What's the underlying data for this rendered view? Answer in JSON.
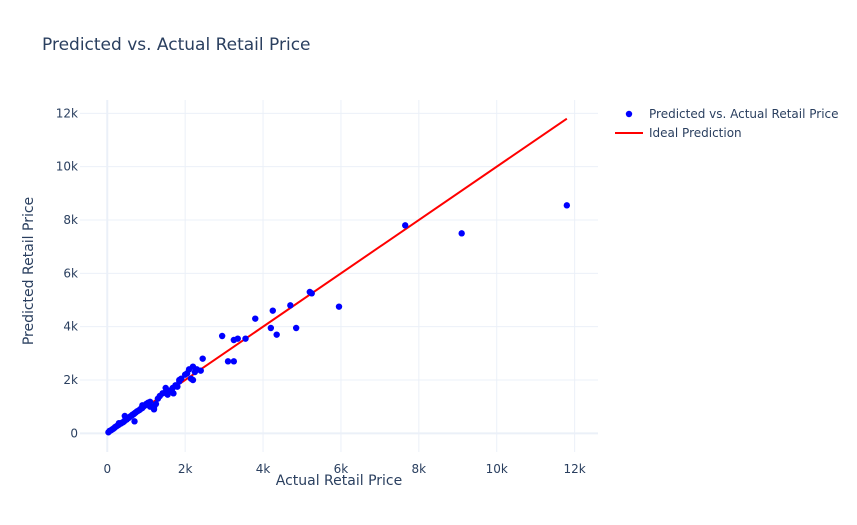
{
  "chart_data": {
    "type": "scatter",
    "title": "Predicted vs. Actual Retail Price",
    "xlabel": "Actual Retail Price",
    "ylabel": "Predicted Retail Price",
    "xlim": [
      -700,
      12600
    ],
    "ylim": [
      -700,
      12500
    ],
    "x_ticks": [
      0,
      2000,
      4000,
      6000,
      8000,
      10000,
      12000
    ],
    "x_tick_labels": [
      "0",
      "2k",
      "4k",
      "6k",
      "8k",
      "10k",
      "12k"
    ],
    "y_ticks": [
      0,
      2000,
      4000,
      6000,
      8000,
      10000,
      12000
    ],
    "y_tick_labels": [
      "0",
      "2k",
      "4k",
      "6k",
      "8k",
      "10k",
      "12k"
    ],
    "grid": true,
    "legend_position": "top-right",
    "series": [
      {
        "name": "Predicted vs. Actual Retail Price",
        "type": "scatter",
        "color": "#0000ff",
        "x": [
          30,
          60,
          90,
          120,
          150,
          180,
          200,
          230,
          260,
          290,
          320,
          350,
          380,
          410,
          440,
          470,
          500,
          520,
          550,
          580,
          610,
          640,
          680,
          700,
          730,
          760,
          800,
          830,
          860,
          900,
          930,
          970,
          1000,
          1050,
          1100,
          1150,
          1200,
          1250,
          1300,
          1350,
          1420,
          1500,
          1550,
          1600,
          1680,
          1750,
          1800,
          1850,
          1900,
          2000,
          2050,
          2100,
          2150,
          2200,
          2250,
          2300,
          2400,
          2450,
          300,
          450,
          650,
          700,
          900,
          1100,
          1200,
          1500,
          1700,
          1850,
          2200,
          2950,
          3100,
          3250,
          3250,
          3350,
          3550,
          3800,
          4200,
          4250,
          4350,
          4700,
          4850,
          5200,
          5250,
          5950,
          7650,
          9100,
          11800
        ],
        "y": [
          40,
          90,
          110,
          140,
          170,
          200,
          230,
          260,
          290,
          320,
          350,
          370,
          400,
          420,
          460,
          500,
          520,
          560,
          580,
          620,
          650,
          680,
          720,
          750,
          780,
          820,
          850,
          880,
          920,
          950,
          1000,
          1050,
          1100,
          1150,
          1180,
          1000,
          950,
          1100,
          1300,
          1400,
          1500,
          1550,
          1450,
          1600,
          1700,
          1800,
          1750,
          1950,
          2050,
          2200,
          2250,
          2400,
          2050,
          2500,
          2300,
          2400,
          2350,
          2800,
          380,
          650,
          700,
          450,
          1050,
          1000,
          900,
          1700,
          1500,
          2000,
          2000,
          3650,
          2700,
          3500,
          2700,
          3550,
          3550,
          4300,
          3950,
          4600,
          3700,
          4800,
          3950,
          5300,
          5250,
          4750,
          7800,
          7500,
          8550
        ]
      },
      {
        "name": "Ideal Prediction",
        "type": "line",
        "color": "#ff0000",
        "x": [
          0,
          11800
        ],
        "y": [
          0,
          11800
        ]
      }
    ]
  }
}
